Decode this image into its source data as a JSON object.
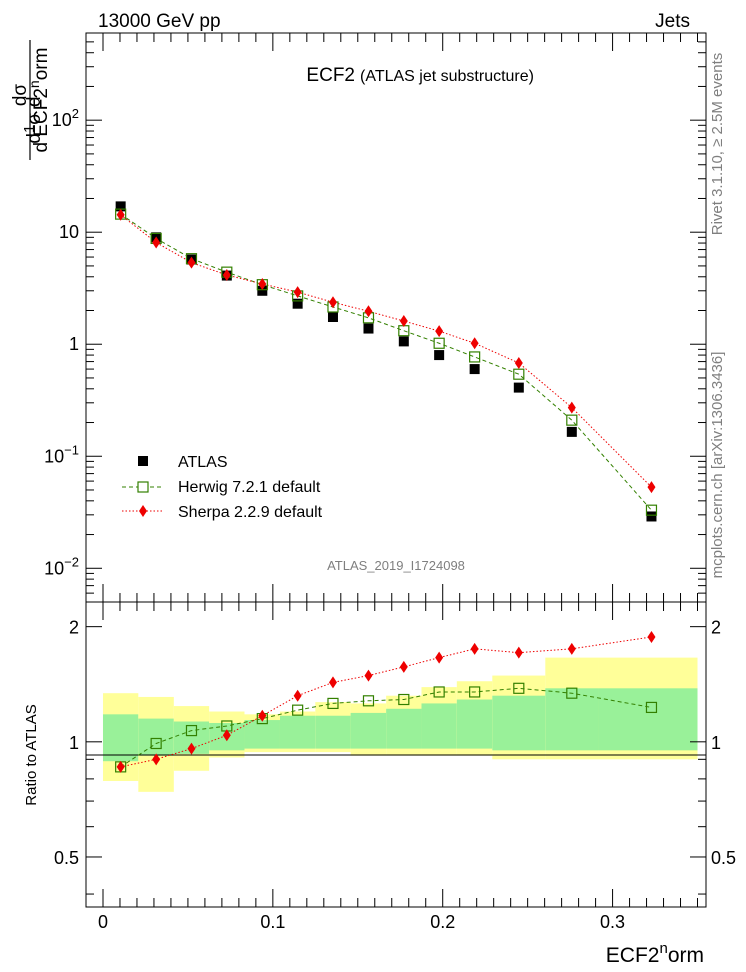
{
  "header": {
    "left": "13000 GeV pp",
    "right": "Jets"
  },
  "side_labels": {
    "rivet": "Rivet 3.1.10, ≥ 2.5M events",
    "mcplots": "mcplots.cern.ch [arXiv:1306.3436]"
  },
  "analysis_id": "ATLAS_2019_I1724098",
  "chart_data": [
    {
      "type": "scatter",
      "title": "ECF2",
      "subtitle": "(ATLAS jet substructure)",
      "ylabel": "1/σ dσ/d ECF2^norm",
      "xlabel": "ECF2^norm",
      "yscale": "log",
      "ylim": [
        0.005,
        600
      ],
      "xlim": [
        -0.01,
        0.355
      ],
      "x_ticks": [
        0,
        0.1,
        0.2,
        0.3
      ],
      "y_ticks": [
        {
          "value": 0.01,
          "base": "10",
          "exp": "−2"
        },
        {
          "value": 0.1,
          "base": "10",
          "exp": "−1"
        },
        {
          "value": 1,
          "base": "1",
          "exp": ""
        },
        {
          "value": 10,
          "base": "10",
          "exp": ""
        },
        {
          "value": 100,
          "base": "10",
          "exp": "2"
        }
      ],
      "legend_position": "bottom-left",
      "series": [
        {
          "name": "ATLAS",
          "color": "#000000",
          "marker": "filled-square",
          "x": [
            0.0104,
            0.0313,
            0.0521,
            0.0729,
            0.0938,
            0.1146,
            0.1354,
            0.1563,
            0.1771,
            0.1979,
            0.2188,
            0.2448,
            0.276,
            0.3229
          ],
          "y": [
            17.0,
            9.0,
            5.7,
            4.1,
            3.0,
            2.3,
            1.75,
            1.38,
            1.06,
            0.8,
            0.6,
            0.41,
            0.165,
            0.029
          ]
        },
        {
          "name": "Herwig 7.2.1 default",
          "color": "#338000",
          "marker": "open-square",
          "line": "dashed",
          "x": [
            0.0104,
            0.0313,
            0.0521,
            0.0729,
            0.0938,
            0.1146,
            0.1354,
            0.1563,
            0.1771,
            0.1979,
            0.2188,
            0.2448,
            0.276,
            0.3229
          ],
          "y": [
            14.5,
            8.8,
            5.8,
            4.4,
            3.4,
            2.7,
            2.15,
            1.72,
            1.32,
            1.02,
            0.77,
            0.54,
            0.21,
            0.033
          ]
        },
        {
          "name": "Sherpa 2.2.9 default",
          "color": "#ee0000",
          "marker": "diamond",
          "line": "dotted",
          "x": [
            0.0104,
            0.0313,
            0.0521,
            0.0729,
            0.0938,
            0.1146,
            0.1354,
            0.1563,
            0.1771,
            0.1979,
            0.2188,
            0.2448,
            0.276,
            0.3229
          ],
          "y": [
            14.3,
            8.1,
            5.35,
            4.15,
            3.45,
            2.92,
            2.37,
            1.97,
            1.61,
            1.31,
            1.02,
            0.68,
            0.272,
            0.053
          ]
        }
      ]
    },
    {
      "type": "scatter",
      "ylabel": "Ratio to ATLAS",
      "xlabel": "ECF2^norm",
      "ylim": [
        0.37,
        2.32
      ],
      "y_ticks": [
        0.5,
        1,
        2
      ],
      "bins": [
        0,
        0.0208,
        0.0417,
        0.0625,
        0.0833,
        0.1042,
        0.125,
        0.1458,
        0.1667,
        0.1875,
        0.2083,
        0.2292,
        0.2604,
        0.2917,
        0.35
      ],
      "band_stat": {
        "color": "#99f199",
        "low": [
          0.89,
          0.92,
          0.93,
          0.95,
          0.96,
          0.96,
          0.96,
          0.96,
          0.96,
          0.96,
          0.96,
          0.95,
          0.95,
          0.95
        ],
        "high": [
          1.18,
          1.15,
          1.13,
          1.12,
          1.14,
          1.17,
          1.17,
          1.19,
          1.22,
          1.26,
          1.29,
          1.32,
          1.38,
          1.38
        ]
      },
      "band_total": {
        "color": "#ffff99",
        "low": [
          0.79,
          0.74,
          0.84,
          0.91,
          0.94,
          0.94,
          0.94,
          0.92,
          0.92,
          0.92,
          0.92,
          0.9,
          0.9,
          0.9
        ],
        "high": [
          1.34,
          1.31,
          1.24,
          1.2,
          1.18,
          1.2,
          1.27,
          1.26,
          1.32,
          1.39,
          1.44,
          1.49,
          1.66,
          1.66
        ]
      },
      "series": [
        {
          "name": "Herwig 7.2.1 default",
          "color": "#338000",
          "x": [
            0.0104,
            0.0313,
            0.0521,
            0.0729,
            0.0938,
            0.1146,
            0.1354,
            0.1563,
            0.1771,
            0.1979,
            0.2188,
            0.2448,
            0.276,
            0.3229
          ],
          "y": [
            0.86,
            0.99,
            1.07,
            1.1,
            1.15,
            1.21,
            1.26,
            1.28,
            1.29,
            1.35,
            1.35,
            1.38,
            1.34,
            1.23
          ]
        },
        {
          "name": "Sherpa 2.2.9 default",
          "color": "#ee0000",
          "x": [
            0.0104,
            0.0313,
            0.0521,
            0.0729,
            0.0938,
            0.1146,
            0.1354,
            0.1563,
            0.1771,
            0.1979,
            0.2188,
            0.2448,
            0.276,
            0.3229
          ],
          "y": [
            0.86,
            0.9,
            0.96,
            1.04,
            1.17,
            1.32,
            1.43,
            1.49,
            1.57,
            1.66,
            1.75,
            1.71,
            1.75,
            1.88
          ]
        }
      ]
    }
  ]
}
